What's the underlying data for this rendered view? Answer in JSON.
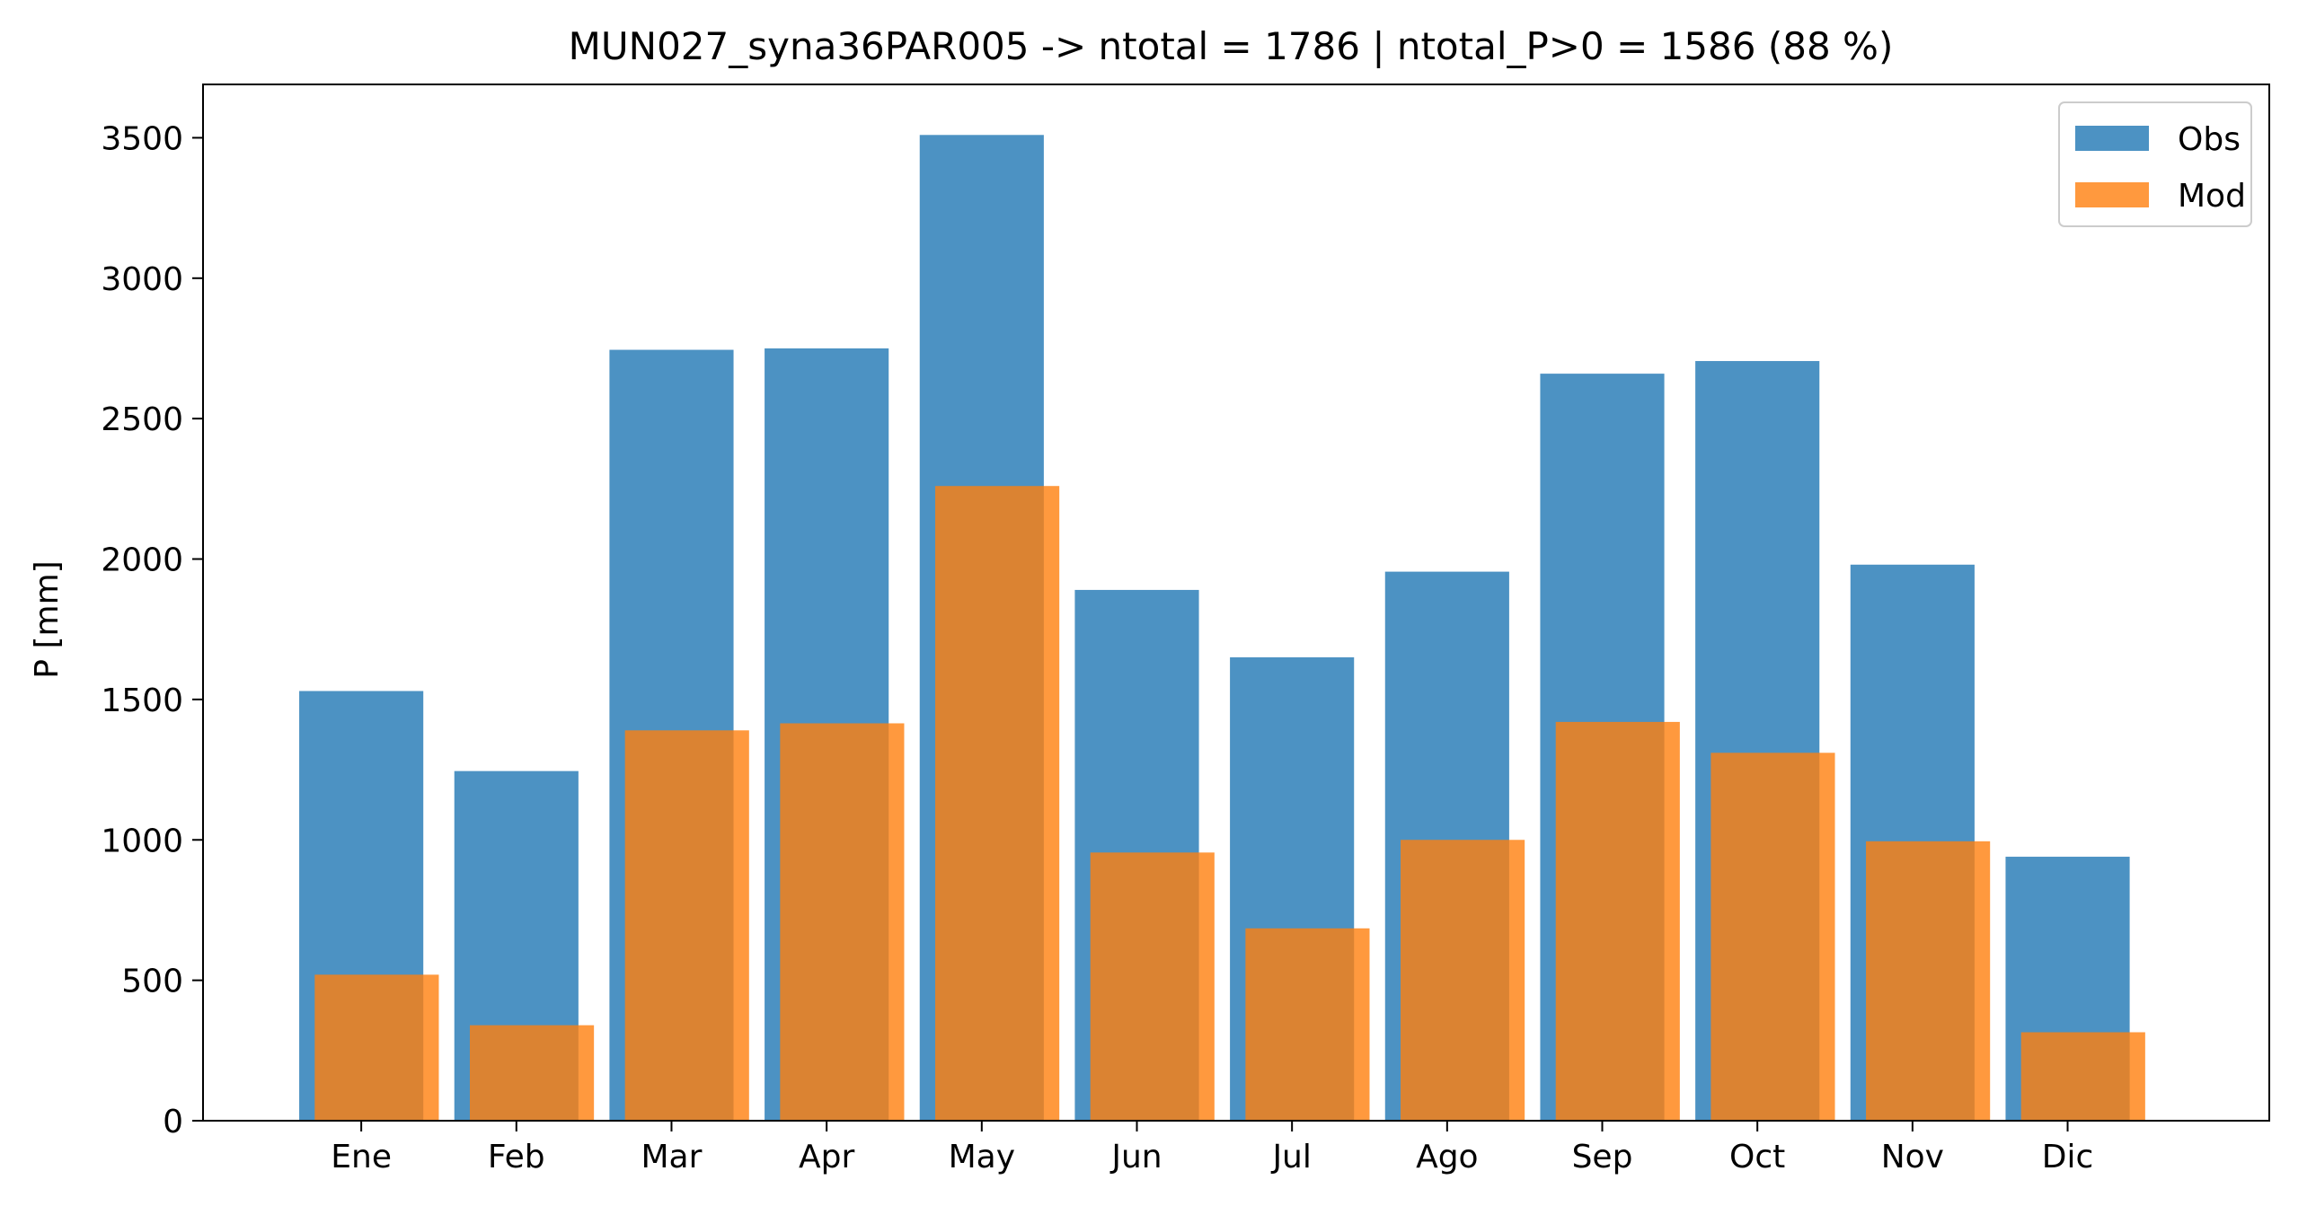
{
  "chart_data": {
    "type": "bar",
    "title": "MUN027_syna36PAR005 -> ntotal = 1786 | ntotal_P>0 = 1586 (88 %)",
    "xlabel": "",
    "ylabel": "P [mm]",
    "categories": [
      "Ene",
      "Feb",
      "Mar",
      "Apr",
      "May",
      "Jun",
      "Jul",
      "Ago",
      "Sep",
      "Oct",
      "Nov",
      "Dic"
    ],
    "series": [
      {
        "name": "Obs",
        "color": "#1f77b4",
        "opacity": 0.8,
        "values": [
          1530,
          1245,
          2745,
          2750,
          3510,
          1890,
          1650,
          1955,
          2660,
          2705,
          1980,
          940
        ]
      },
      {
        "name": "Mod",
        "color": "#ff7f0e",
        "opacity": 0.8,
        "values": [
          520,
          340,
          1390,
          1415,
          2260,
          955,
          685,
          1000,
          1420,
          1310,
          995,
          315
        ]
      }
    ],
    "ylim": [
      0,
      3690
    ],
    "yticks": [
      0,
      500,
      1000,
      1500,
      2000,
      2500,
      3000,
      3500
    ],
    "grid": false,
    "legend_position": "top-right"
  }
}
